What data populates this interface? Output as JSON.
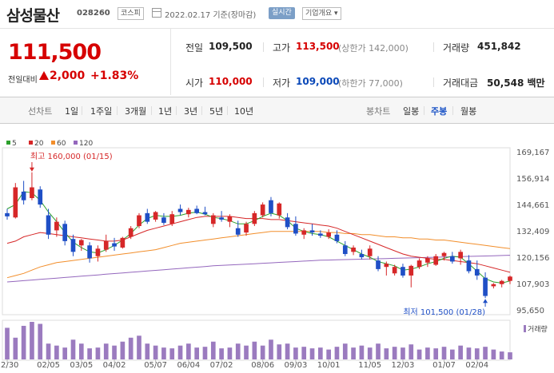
{
  "header": {
    "title": "삼성물산",
    "code": "028260",
    "market": "코스피",
    "date": "2022.02.17 기준(장마감)",
    "realtime": "실시간",
    "company_button": "기업개요"
  },
  "quote": {
    "price": "111,500",
    "change_label": "전일대비",
    "change_amount": "2,000",
    "change_pct": "+1.83%",
    "stats": {
      "prev_label": "전일",
      "prev": "109,500",
      "high_label": "고가",
      "high": "113,500",
      "upper_limit": "(상한가 142,000)",
      "volume_label": "거래량",
      "volume": "451,842",
      "open_label": "시가",
      "open": "110,000",
      "low_label": "저가",
      "low": "109,000",
      "lower_limit": "(하한가 77,000)",
      "value_label": "거래대금",
      "value": "50,548 백만"
    }
  },
  "tabs": {
    "line_label": "선차트",
    "line_items": [
      "1일",
      "1주일",
      "3개월",
      "1년",
      "3년",
      "5년",
      "10년"
    ],
    "candle_label": "봉차트",
    "candle_items": [
      "일봉",
      "주봉",
      "월봉"
    ],
    "active": "주봉"
  },
  "chart_data": {
    "type": "candlestick",
    "legend": [
      {
        "name": "5",
        "color": "#2ca02c"
      },
      {
        "name": "20",
        "color": "#d62728"
      },
      {
        "name": "60",
        "color": "#f28e2b"
      },
      {
        "name": "120",
        "color": "#9467bd"
      }
    ],
    "y_ticks": [
      "169,167",
      "156,914",
      "144,661",
      "132,409",
      "120,156",
      "107,903",
      "95,650"
    ],
    "y_tick_values": [
      169167,
      156914,
      144661,
      132409,
      120156,
      107903,
      95650
    ],
    "ylim": [
      95650,
      169167
    ],
    "x_ticks": [
      "12/30",
      "02/05",
      "03/05",
      "04/02",
      "05/07",
      "06/04",
      "07/02",
      "08/06",
      "09/03",
      "10/01",
      "11/05",
      "12/03",
      "01/07",
      "02/04"
    ],
    "x_tick_index": [
      0,
      5,
      9,
      13,
      18,
      22,
      26,
      31,
      35,
      39,
      44,
      48,
      53,
      57
    ],
    "candles": [
      [
        141000,
        143000,
        138000,
        139500
      ],
      [
        139000,
        155000,
        138500,
        153000
      ],
      [
        151000,
        156000,
        145000,
        147000
      ],
      [
        148000,
        160000,
        147000,
        153000
      ],
      [
        152000,
        153500,
        143500,
        145000
      ],
      [
        140000,
        143000,
        129000,
        131000
      ],
      [
        133000,
        139000,
        130000,
        137000
      ],
      [
        136000,
        137500,
        126000,
        128000
      ],
      [
        129000,
        131000,
        121000,
        123000
      ],
      [
        126000,
        129000,
        123500,
        128500
      ],
      [
        126000,
        127500,
        118000,
        120000
      ],
      [
        121000,
        126000,
        118500,
        124500
      ],
      [
        124000,
        131000,
        123000,
        128000
      ],
      [
        127000,
        129500,
        123500,
        125500
      ],
      [
        125000,
        130000,
        124500,
        129500
      ],
      [
        130000,
        135000,
        129000,
        134000
      ],
      [
        135000,
        141000,
        134000,
        140000
      ],
      [
        141000,
        143000,
        136000,
        137000
      ],
      [
        138000,
        142000,
        137000,
        141500
      ],
      [
        139000,
        141000,
        135500,
        136500
      ],
      [
        136000,
        142000,
        135000,
        140500
      ],
      [
        143000,
        145000,
        140000,
        141500
      ],
      [
        140500,
        143500,
        139000,
        142500
      ],
      [
        143000,
        144500,
        140500,
        141000
      ],
      [
        141500,
        144000,
        140000,
        140500
      ],
      [
        136000,
        141000,
        134500,
        140000
      ],
      [
        139000,
        142000,
        137000,
        138000
      ],
      [
        137000,
        140500,
        134500,
        139500
      ],
      [
        134000,
        137500,
        130000,
        131000
      ],
      [
        132000,
        137000,
        130500,
        136000
      ],
      [
        136000,
        142000,
        135000,
        141000
      ],
      [
        140000,
        146000,
        139000,
        145000
      ],
      [
        147000,
        148500,
        139500,
        141000
      ],
      [
        140000,
        146000,
        138500,
        145500
      ],
      [
        139000,
        141000,
        133500,
        134500
      ],
      [
        136000,
        139500,
        130500,
        131500
      ],
      [
        131000,
        134000,
        129000,
        133000
      ],
      [
        133000,
        136000,
        130500,
        132000
      ],
      [
        131500,
        133000,
        129500,
        130500
      ],
      [
        130000,
        133500,
        129000,
        132000
      ],
      [
        131000,
        133000,
        127000,
        128000
      ],
      [
        126000,
        128000,
        121000,
        122000
      ],
      [
        123000,
        126000,
        121500,
        125000
      ],
      [
        122000,
        124000,
        119500,
        120500
      ],
      [
        121000,
        126000,
        119500,
        124500
      ],
      [
        119000,
        121000,
        114000,
        115000
      ],
      [
        116000,
        118500,
        112000,
        117500
      ],
      [
        113000,
        117000,
        112000,
        116000
      ],
      [
        116000,
        117500,
        111000,
        112000
      ],
      [
        112000,
        117000,
        106500,
        116500
      ],
      [
        116000,
        120000,
        115000,
        119000
      ],
      [
        118000,
        121000,
        116000,
        120000
      ],
      [
        117000,
        122000,
        116500,
        121000
      ],
      [
        121000,
        123000,
        119000,
        122500
      ],
      [
        121000,
        123000,
        117500,
        118500
      ],
      [
        120000,
        124000,
        117000,
        123000
      ],
      [
        119000,
        121500,
        113000,
        114000
      ],
      [
        115000,
        119000,
        110000,
        112000
      ],
      [
        111000,
        113500,
        101500,
        102500
      ],
      [
        107000,
        108500,
        106000,
        108000
      ],
      [
        108000,
        110000,
        106500,
        109500
      ],
      [
        109500,
        112000,
        108000,
        111500
      ]
    ],
    "ma5": [
      143000,
      145000,
      151000,
      150500,
      147000,
      141500,
      137000,
      132000,
      127500,
      125000,
      123000,
      122500,
      124000,
      126000,
      128500,
      131500,
      135500,
      138500,
      140000,
      139500,
      139500,
      140000,
      141000,
      141500,
      140500,
      139000,
      138500,
      137500,
      136000,
      136000,
      137500,
      139500,
      141000,
      140000,
      137500,
      134000,
      132500,
      131500,
      131000,
      130000,
      128000,
      126000,
      124000,
      122000,
      120500,
      118500,
      117500,
      116500,
      114500,
      115000,
      116000,
      117500,
      118500,
      120000,
      121000,
      120500,
      117500,
      114000,
      110500,
      109000,
      108500,
      109500
    ],
    "ma20": [
      127000,
      128000,
      130000,
      131000,
      132000,
      131500,
      131000,
      130500,
      130000,
      129500,
      129000,
      128500,
      128000,
      128000,
      128500,
      130000,
      131500,
      133000,
      134000,
      135000,
      136000,
      137000,
      138000,
      139000,
      139500,
      139500,
      139500,
      139500,
      139000,
      138500,
      138500,
      138500,
      138000,
      138000,
      137500,
      137000,
      136500,
      136000,
      135500,
      135000,
      134000,
      132500,
      131000,
      129500,
      128000,
      126500,
      125000,
      123500,
      122000,
      121000,
      120500,
      120000,
      119500,
      119500,
      119000,
      118500,
      118000,
      117500,
      116500,
      115500,
      114500,
      113500
    ],
    "ma60": [
      111000,
      112000,
      113000,
      114500,
      116000,
      117000,
      118000,
      118500,
      119000,
      119500,
      120000,
      120500,
      121000,
      121500,
      122000,
      122500,
      123000,
      123500,
      124000,
      125000,
      126000,
      127000,
      127500,
      128000,
      128500,
      129000,
      129500,
      130000,
      130500,
      131000,
      131500,
      132000,
      132500,
      132500,
      132500,
      132500,
      132500,
      132500,
      132500,
      132000,
      132000,
      131500,
      131500,
      131000,
      131000,
      130500,
      130000,
      130000,
      129500,
      129500,
      129000,
      129000,
      128500,
      128500,
      128000,
      127500,
      127000,
      126500,
      126000,
      125500,
      125000,
      124500
    ],
    "ma120": [
      109000,
      109300,
      109600,
      109900,
      110200,
      110500,
      110800,
      111100,
      111400,
      111700,
      112000,
      112300,
      112600,
      112900,
      113200,
      113500,
      113800,
      114100,
      114400,
      114700,
      115000,
      115300,
      115600,
      115900,
      116200,
      116500,
      116700,
      116900,
      117100,
      117300,
      117500,
      117700,
      117900,
      118100,
      118300,
      118500,
      118700,
      118900,
      119100,
      119200,
      119300,
      119400,
      119500,
      119600,
      119700,
      119800,
      119900,
      120000,
      120100,
      120200,
      120300,
      120400,
      120500,
      120600,
      120700,
      120800,
      120900,
      121000,
      121100,
      121200,
      121300,
      121400
    ],
    "volume": [
      80,
      55,
      85,
      95,
      90,
      40,
      35,
      30,
      50,
      40,
      28,
      30,
      40,
      35,
      45,
      55,
      60,
      40,
      35,
      30,
      28,
      35,
      40,
      30,
      32,
      45,
      28,
      30,
      40,
      35,
      45,
      35,
      50,
      38,
      40,
      30,
      32,
      28,
      30,
      25,
      32,
      40,
      30,
      35,
      30,
      40,
      28,
      32,
      30,
      38,
      25,
      30,
      28,
      32,
      25,
      35,
      30,
      28,
      32,
      25,
      20,
      18
    ],
    "annotations": {
      "high": "최고 160,000 (01/15)",
      "low": "최저 101,500 (01/28)"
    },
    "volume_label": "거래량",
    "colors": {
      "up": "#d62728",
      "down": "#1f4fc6"
    }
  }
}
